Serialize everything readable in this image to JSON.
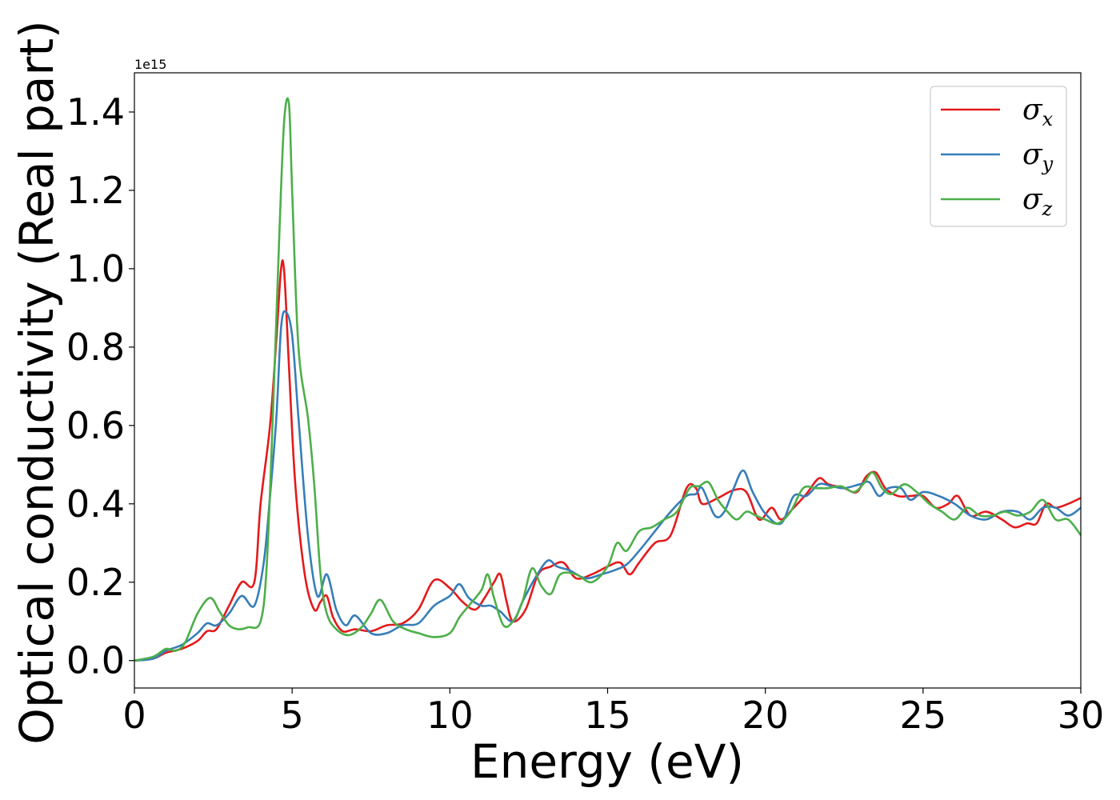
{
  "chart_data": {
    "type": "line",
    "xlabel": "Energy (eV)",
    "ylabel": "Optical conductivity (Real part)",
    "offset_label": "1e15",
    "xlim": [
      0,
      30
    ],
    "ylim": [
      -0.07,
      1.5
    ],
    "xticks": [
      0,
      5,
      10,
      15,
      20,
      25,
      30
    ],
    "xtick_labels": [
      "0",
      "5",
      "10",
      "15",
      "20",
      "25",
      "30"
    ],
    "yticks": [
      0.0,
      0.2,
      0.4,
      0.6,
      0.8,
      1.0,
      1.2,
      1.4
    ],
    "ytick_labels": [
      "0.0",
      "0.2",
      "0.4",
      "0.6",
      "0.8",
      "1.0",
      "1.2",
      "1.4"
    ],
    "grid": false,
    "legend_position": "top-right",
    "series": [
      {
        "name": "σx",
        "legend_base": "σ",
        "legend_sub": "x",
        "color": "#e41a1c",
        "x": [
          0,
          0.6,
          1.0,
          1.5,
          2.0,
          2.3,
          2.6,
          3.0,
          3.4,
          3.8,
          4.0,
          4.3,
          4.5,
          4.65,
          4.75,
          4.9,
          5.1,
          5.4,
          5.7,
          5.9,
          6.1,
          6.3,
          6.6,
          7.0,
          7.5,
          8.0,
          8.5,
          9.0,
          9.5,
          10.0,
          10.4,
          10.8,
          11.1,
          11.4,
          11.6,
          11.8,
          12.0,
          12.4,
          12.8,
          13.2,
          13.6,
          14.0,
          14.5,
          15.0,
          15.4,
          15.7,
          16.0,
          16.5,
          17.0,
          17.5,
          17.8,
          18.0,
          18.5,
          19.0,
          19.4,
          19.8,
          20.2,
          20.5,
          20.9,
          21.3,
          21.7,
          22.0,
          22.5,
          22.9,
          23.2,
          23.5,
          23.8,
          24.2,
          24.6,
          25.0,
          25.4,
          25.8,
          26.1,
          26.5,
          27.0,
          27.5,
          27.9,
          28.3,
          28.6,
          28.9,
          29.2,
          29.6,
          30.0
        ],
        "y": [
          0.0,
          0.005,
          0.02,
          0.03,
          0.05,
          0.075,
          0.08,
          0.14,
          0.2,
          0.2,
          0.4,
          0.6,
          0.82,
          1.0,
          0.99,
          0.75,
          0.45,
          0.22,
          0.13,
          0.15,
          0.165,
          0.11,
          0.075,
          0.08,
          0.075,
          0.09,
          0.095,
          0.13,
          0.205,
          0.185,
          0.15,
          0.13,
          0.16,
          0.2,
          0.22,
          0.15,
          0.1,
          0.13,
          0.22,
          0.24,
          0.25,
          0.21,
          0.22,
          0.24,
          0.25,
          0.22,
          0.25,
          0.3,
          0.32,
          0.44,
          0.44,
          0.4,
          0.415,
          0.435,
          0.43,
          0.36,
          0.39,
          0.36,
          0.39,
          0.425,
          0.465,
          0.45,
          0.44,
          0.43,
          0.47,
          0.48,
          0.44,
          0.42,
          0.42,
          0.42,
          0.39,
          0.4,
          0.42,
          0.37,
          0.38,
          0.36,
          0.34,
          0.35,
          0.35,
          0.4,
          0.39,
          0.4,
          0.415
        ]
      },
      {
        "name": "σy",
        "legend_base": "σ",
        "legend_sub": "y",
        "color": "#377eb8",
        "x": [
          0,
          0.6,
          1.0,
          1.5,
          2.0,
          2.3,
          2.6,
          3.0,
          3.4,
          3.8,
          4.1,
          4.3,
          4.5,
          4.65,
          4.8,
          5.0,
          5.2,
          5.5,
          5.8,
          6.1,
          6.4,
          6.7,
          7.0,
          7.5,
          8.0,
          8.5,
          9.0,
          9.5,
          10.0,
          10.3,
          10.6,
          11.0,
          11.3,
          11.6,
          12.0,
          12.3,
          12.7,
          13.1,
          13.4,
          13.8,
          14.3,
          14.8,
          15.2,
          15.6,
          16.0,
          16.5,
          17.0,
          17.5,
          17.8,
          18.0,
          18.4,
          18.7,
          19.0,
          19.3,
          19.6,
          20.0,
          20.5,
          20.9,
          21.3,
          21.7,
          22.1,
          22.5,
          23.0,
          23.3,
          23.6,
          23.9,
          24.3,
          24.6,
          25.0,
          25.5,
          26.0,
          26.5,
          27.0,
          27.5,
          28.0,
          28.4,
          28.8,
          29.2,
          29.6,
          30.0
        ],
        "y": [
          0.0,
          0.005,
          0.025,
          0.04,
          0.07,
          0.095,
          0.09,
          0.12,
          0.165,
          0.14,
          0.25,
          0.42,
          0.62,
          0.85,
          0.89,
          0.83,
          0.62,
          0.32,
          0.165,
          0.22,
          0.13,
          0.09,
          0.115,
          0.07,
          0.07,
          0.09,
          0.095,
          0.14,
          0.165,
          0.195,
          0.16,
          0.14,
          0.14,
          0.125,
          0.1,
          0.15,
          0.21,
          0.255,
          0.24,
          0.23,
          0.21,
          0.22,
          0.23,
          0.245,
          0.28,
          0.33,
          0.38,
          0.42,
          0.425,
          0.44,
          0.37,
          0.38,
          0.44,
          0.485,
          0.43,
          0.375,
          0.35,
          0.42,
          0.42,
          0.45,
          0.445,
          0.44,
          0.45,
          0.455,
          0.42,
          0.44,
          0.44,
          0.41,
          0.43,
          0.42,
          0.4,
          0.37,
          0.36,
          0.38,
          0.38,
          0.36,
          0.39,
          0.39,
          0.37,
          0.39
        ]
      },
      {
        "name": "σz",
        "legend_base": "σ",
        "legend_sub": "z",
        "color": "#4daf4a",
        "x": [
          0,
          0.6,
          1.0,
          1.3,
          1.6,
          2.0,
          2.4,
          2.7,
          3.0,
          3.3,
          3.6,
          4.0,
          4.2,
          4.4,
          4.6,
          4.75,
          4.9,
          5.0,
          5.2,
          5.5,
          5.7,
          5.9,
          6.1,
          6.4,
          6.8,
          7.2,
          7.5,
          7.8,
          8.2,
          8.6,
          9.0,
          9.5,
          10.0,
          10.3,
          10.6,
          11.0,
          11.2,
          11.4,
          11.7,
          12.0,
          12.3,
          12.6,
          12.9,
          13.2,
          13.5,
          14.0,
          14.5,
          15.0,
          15.3,
          15.6,
          16.0,
          16.4,
          16.8,
          17.2,
          17.6,
          17.9,
          18.2,
          18.5,
          18.8,
          19.1,
          19.4,
          19.7,
          20.0,
          20.4,
          20.8,
          21.2,
          21.6,
          22.0,
          22.4,
          22.8,
          23.1,
          23.4,
          23.7,
          24.0,
          24.4,
          24.8,
          25.2,
          25.6,
          26.0,
          26.4,
          26.8,
          27.2,
          27.6,
          28.0,
          28.4,
          28.8,
          29.2,
          29.6,
          30.0
        ],
        "y": [
          0.0,
          0.01,
          0.03,
          0.025,
          0.045,
          0.12,
          0.16,
          0.125,
          0.09,
          0.08,
          0.085,
          0.1,
          0.25,
          0.65,
          1.1,
          1.38,
          1.42,
          1.2,
          0.8,
          0.62,
          0.45,
          0.22,
          0.12,
          0.08,
          0.065,
          0.085,
          0.12,
          0.155,
          0.1,
          0.08,
          0.07,
          0.06,
          0.07,
          0.11,
          0.14,
          0.18,
          0.22,
          0.16,
          0.09,
          0.1,
          0.15,
          0.235,
          0.19,
          0.17,
          0.22,
          0.22,
          0.2,
          0.24,
          0.3,
          0.28,
          0.33,
          0.34,
          0.36,
          0.38,
          0.44,
          0.445,
          0.455,
          0.41,
          0.38,
          0.36,
          0.38,
          0.37,
          0.36,
          0.35,
          0.38,
          0.44,
          0.44,
          0.44,
          0.445,
          0.43,
          0.45,
          0.48,
          0.44,
          0.425,
          0.45,
          0.43,
          0.4,
          0.38,
          0.36,
          0.39,
          0.37,
          0.37,
          0.38,
          0.37,
          0.38,
          0.41,
          0.36,
          0.36,
          0.32
        ]
      }
    ]
  }
}
